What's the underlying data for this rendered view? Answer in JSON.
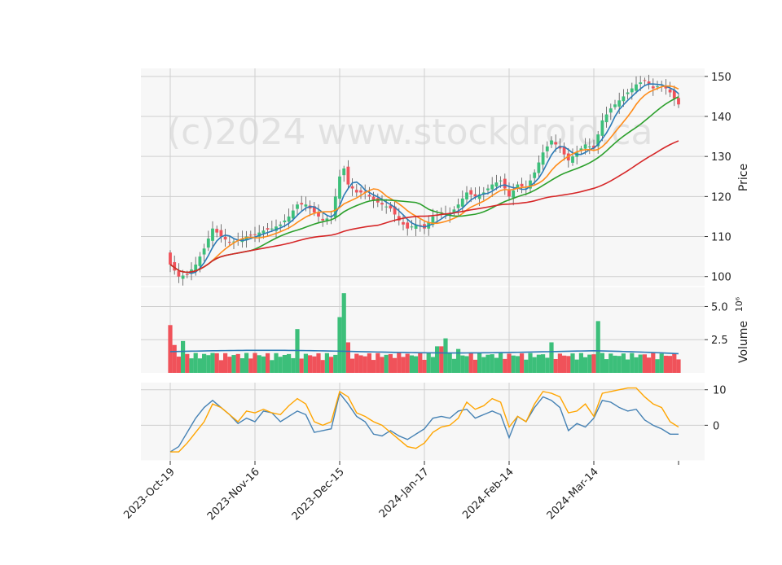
{
  "watermark": "(c)2024 www.stockdroid.ca",
  "colors": {
    "up": "#3cbf7a",
    "down": "#f0525a",
    "ma_fast": "#2c7bb6",
    "ma_mid": "#ff8c1a",
    "ma_slow": "#2ca02c",
    "ma_long": "#d62728",
    "volume_ma": "#2c7bb6",
    "osc_a": "#4682b4",
    "osc_b": "#ffa500",
    "panel_bg": "#f7f7f7",
    "grid": "#cfcfcf"
  },
  "chart_data": {
    "type": "candlestick",
    "x_ticks": [
      "2023-Oct-19",
      "2023-Nov-16",
      "2023-Dec-15",
      "2024-Jan-17",
      "2024-Feb-14",
      "2024-Mar-14"
    ],
    "x_tick_index": [
      0,
      20,
      40,
      60,
      80,
      100
    ],
    "n": 121,
    "anchors": [
      [
        0,
        103
      ],
      [
        2,
        100
      ],
      [
        4,
        100.5
      ],
      [
        6,
        103
      ],
      [
        8,
        107
      ],
      [
        10,
        112
      ],
      [
        12,
        110
      ],
      [
        14,
        108.5
      ],
      [
        16,
        109
      ],
      [
        18,
        110
      ],
      [
        20,
        110.5
      ],
      [
        22,
        111.5
      ],
      [
        24,
        112
      ],
      [
        26,
        113
      ],
      [
        28,
        115
      ],
      [
        30,
        118
      ],
      [
        32,
        118
      ],
      [
        34,
        116
      ],
      [
        36,
        114
      ],
      [
        38,
        115
      ],
      [
        40,
        125
      ],
      [
        41,
        127
      ],
      [
        42,
        123
      ],
      [
        44,
        121
      ],
      [
        46,
        121
      ],
      [
        48,
        119
      ],
      [
        50,
        118
      ],
      [
        52,
        117
      ],
      [
        54,
        114
      ],
      [
        56,
        112
      ],
      [
        58,
        113
      ],
      [
        60,
        112
      ],
      [
        62,
        115
      ],
      [
        64,
        116
      ],
      [
        66,
        115.5
      ],
      [
        68,
        118
      ],
      [
        70,
        121
      ],
      [
        72,
        120
      ],
      [
        74,
        121
      ],
      [
        76,
        123
      ],
      [
        78,
        124
      ],
      [
        80,
        120
      ],
      [
        82,
        123
      ],
      [
        84,
        122
      ],
      [
        86,
        126
      ],
      [
        88,
        131
      ],
      [
        90,
        134
      ],
      [
        92,
        132
      ],
      [
        94,
        129
      ],
      [
        96,
        131
      ],
      [
        98,
        133
      ],
      [
        100,
        132
      ],
      [
        102,
        139
      ],
      [
        104,
        142
      ],
      [
        106,
        144
      ],
      [
        108,
        146
      ],
      [
        110,
        148
      ],
      [
        112,
        149
      ],
      [
        114,
        147
      ],
      [
        116,
        148
      ],
      [
        118,
        146
      ],
      [
        120,
        143
      ]
    ],
    "overlays": [
      {
        "key": "ma_fast",
        "period": 5
      },
      {
        "key": "ma_mid",
        "period": 10
      },
      {
        "key": "ma_slow",
        "period": 20
      },
      {
        "key": "ma_long",
        "period": 50
      }
    ],
    "price_axis": {
      "label": "Price",
      "range": [
        97.5,
        152
      ],
      "ticks": [
        100,
        110,
        120,
        130,
        140,
        150
      ]
    },
    "volume_axis": {
      "label": "Volume",
      "exponent_label": "10⁶",
      "range": [
        0,
        6.5
      ],
      "ticks": [
        2.5,
        5.0
      ],
      "tick_labels": [
        "2.5",
        "5.0"
      ]
    },
    "oscillator_axis": {
      "range": [
        -10,
        12
      ],
      "ticks": [
        0,
        10
      ]
    },
    "volume_spikes": [
      [
        0,
        3.6
      ],
      [
        1,
        2.1
      ],
      [
        3,
        2.4
      ],
      [
        10,
        1.5
      ],
      [
        20,
        1.5
      ],
      [
        30,
        3.3
      ],
      [
        40,
        4.2
      ],
      [
        41,
        6.0
      ],
      [
        42,
        2.3
      ],
      [
        55,
        1.2
      ],
      [
        63,
        2.0
      ],
      [
        64,
        2.0
      ],
      [
        65,
        2.6
      ],
      [
        68,
        1.8
      ],
      [
        90,
        2.3
      ],
      [
        100,
        1.4
      ],
      [
        101,
        3.9
      ]
    ],
    "volume_ma_level": 1.6,
    "osc_anchors_a": [
      [
        0,
        -7.5
      ],
      [
        2,
        -6
      ],
      [
        4,
        -2
      ],
      [
        6,
        2
      ],
      [
        8,
        5
      ],
      [
        10,
        7
      ],
      [
        12,
        5
      ],
      [
        14,
        3
      ],
      [
        16,
        0.5
      ],
      [
        18,
        2
      ],
      [
        20,
        1
      ],
      [
        22,
        4
      ],
      [
        24,
        3.5
      ],
      [
        26,
        1
      ],
      [
        28,
        2.5
      ],
      [
        30,
        4
      ],
      [
        32,
        3
      ],
      [
        34,
        -2
      ],
      [
        36,
        -1.5
      ],
      [
        38,
        -1
      ],
      [
        40,
        9
      ],
      [
        42,
        6
      ],
      [
        44,
        2.5
      ],
      [
        46,
        1
      ],
      [
        48,
        -2.5
      ],
      [
        50,
        -3
      ],
      [
        52,
        -1.5
      ],
      [
        54,
        -3
      ],
      [
        56,
        -4
      ],
      [
        58,
        -2.5
      ],
      [
        60,
        -1
      ],
      [
        62,
        2
      ],
      [
        64,
        2.5
      ],
      [
        66,
        2
      ],
      [
        68,
        4
      ],
      [
        70,
        4.5
      ],
      [
        72,
        2
      ],
      [
        74,
        3
      ],
      [
        76,
        4
      ],
      [
        78,
        3
      ],
      [
        80,
        -3.5
      ],
      [
        82,
        2.5
      ],
      [
        84,
        1
      ],
      [
        86,
        5
      ],
      [
        88,
        8
      ],
      [
        90,
        7
      ],
      [
        92,
        5
      ],
      [
        94,
        -1.5
      ],
      [
        96,
        0.5
      ],
      [
        98,
        -0.5
      ],
      [
        100,
        2
      ],
      [
        102,
        7
      ],
      [
        104,
        6.5
      ],
      [
        106,
        5
      ],
      [
        108,
        4
      ],
      [
        110,
        4.5
      ],
      [
        112,
        1.5
      ],
      [
        114,
        0
      ],
      [
        116,
        -1
      ],
      [
        118,
        -2.5
      ],
      [
        120,
        -2.5
      ]
    ],
    "osc_anchors_b": [
      [
        0,
        -7.5
      ],
      [
        2,
        -7.5
      ],
      [
        4,
        -5
      ],
      [
        6,
        -2
      ],
      [
        8,
        1
      ],
      [
        10,
        6
      ],
      [
        12,
        5
      ],
      [
        14,
        3
      ],
      [
        16,
        1
      ],
      [
        18,
        4
      ],
      [
        20,
        3.5
      ],
      [
        22,
        4.5
      ],
      [
        24,
        3.5
      ],
      [
        26,
        3
      ],
      [
        28,
        5.5
      ],
      [
        30,
        7.5
      ],
      [
        32,
        6
      ],
      [
        34,
        1
      ],
      [
        36,
        0
      ],
      [
        38,
        1
      ],
      [
        40,
        9.5
      ],
      [
        42,
        8
      ],
      [
        44,
        3.5
      ],
      [
        46,
        2.5
      ],
      [
        48,
        1
      ],
      [
        50,
        0
      ],
      [
        52,
        -2
      ],
      [
        54,
        -4
      ],
      [
        56,
        -6
      ],
      [
        58,
        -6.5
      ],
      [
        60,
        -5
      ],
      [
        62,
        -2
      ],
      [
        64,
        -0.5
      ],
      [
        66,
        0
      ],
      [
        68,
        2
      ],
      [
        70,
        6.5
      ],
      [
        72,
        4.5
      ],
      [
        74,
        5.5
      ],
      [
        76,
        7.5
      ],
      [
        78,
        6.5
      ],
      [
        80,
        -0.5
      ],
      [
        82,
        2.5
      ],
      [
        84,
        1
      ],
      [
        86,
        6
      ],
      [
        88,
        9.5
      ],
      [
        90,
        9
      ],
      [
        92,
        8
      ],
      [
        94,
        3.5
      ],
      [
        96,
        4
      ],
      [
        98,
        6
      ],
      [
        100,
        2.5
      ],
      [
        102,
        9
      ],
      [
        104,
        9.5
      ],
      [
        106,
        10
      ],
      [
        108,
        10.5
      ],
      [
        110,
        10.5
      ],
      [
        112,
        8
      ],
      [
        114,
        6
      ],
      [
        116,
        5
      ],
      [
        118,
        1
      ],
      [
        120,
        -0.5
      ]
    ]
  }
}
